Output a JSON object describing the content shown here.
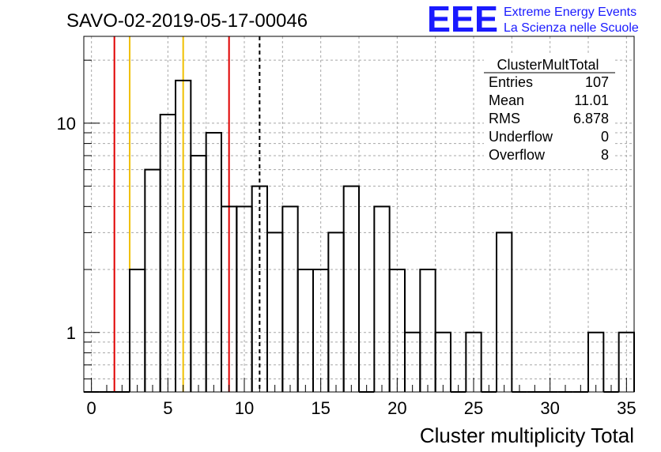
{
  "run_title": "SAVO-02-2019-05-17-00046",
  "logo": {
    "letters": "EEE",
    "line1": "Extreme Energy Events",
    "line2": "La Scienza nelle Scuole",
    "color": "#1a1aff"
  },
  "stats": {
    "title": "ClusterMultTotal",
    "rows": [
      {
        "label": "Entries",
        "value": "107"
      },
      {
        "label": "Mean",
        "value": "11.01"
      },
      {
        "label": "RMS",
        "value": "6.878"
      },
      {
        "label": "Underflow",
        "value": "0"
      },
      {
        "label": "Overflow",
        "value": "8"
      }
    ]
  },
  "chart_data": {
    "type": "histogram",
    "title": "SAVO-02-2019-05-17-00046",
    "xlabel": "Cluster multiplicity Total",
    "ylabel": "",
    "xlim": [
      -0.5,
      35.5
    ],
    "ylim": [
      0.52,
      26
    ],
    "yscale": "log",
    "grid": true,
    "bin_width": 1,
    "bin_low_edges": [
      -0.5,
      0.5,
      1.5,
      2.5,
      3.5,
      4.5,
      5.5,
      6.5,
      7.5,
      8.5,
      9.5,
      10.5,
      11.5,
      12.5,
      13.5,
      14.5,
      15.5,
      16.5,
      17.5,
      18.5,
      19.5,
      20.5,
      21.5,
      22.5,
      23.5,
      24.5,
      25.5,
      26.5,
      27.5,
      28.5,
      29.5,
      30.5,
      31.5,
      32.5,
      33.5,
      34.5
    ],
    "counts": [
      0,
      0,
      0,
      2,
      6,
      11,
      16,
      7,
      9,
      4,
      4,
      5,
      3,
      4,
      2,
      2,
      3,
      5,
      0,
      4,
      2,
      1,
      2,
      1,
      0,
      1,
      0,
      3,
      0,
      0,
      0,
      0,
      0,
      1,
      0,
      1
    ],
    "x_ticks": [
      0,
      5,
      10,
      15,
      20,
      25,
      30,
      35
    ],
    "x_tick_labels": [
      "0",
      "5",
      "10",
      "15",
      "20",
      "25",
      "30",
      "35"
    ],
    "y_ticks": [
      1,
      10
    ],
    "y_tick_labels": [
      "1",
      "10"
    ],
    "vertical_lines": [
      {
        "x": 1.5,
        "color": "#e00000",
        "style": "solid"
      },
      {
        "x": 2.5,
        "color": "#f0c000",
        "style": "solid"
      },
      {
        "x": 6.0,
        "color": "#f0c000",
        "style": "solid"
      },
      {
        "x": 9.0,
        "color": "#e00000",
        "style": "solid"
      },
      {
        "x": 11.0,
        "color": "#000000",
        "style": "dashed"
      }
    ],
    "legend": "top-right"
  }
}
